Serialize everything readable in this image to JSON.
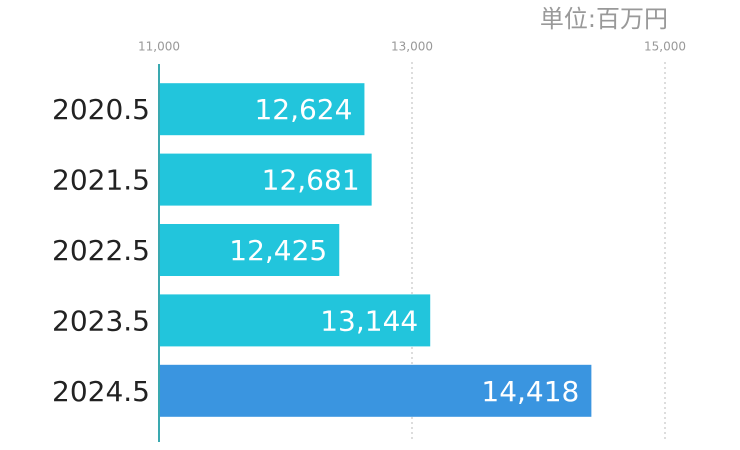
{
  "chart_data": {
    "type": "barh",
    "unit_label": "単位:百万円",
    "categories": [
      "2020.5",
      "2021.5",
      "2022.5",
      "2023.5",
      "2024.5"
    ],
    "values": [
      12624,
      12681,
      12425,
      13144,
      14418
    ],
    "value_labels": [
      "12,624",
      "12,681",
      "12,425",
      "13,144",
      "14,418"
    ],
    "colors": [
      "#22c5dc",
      "#22c5dc",
      "#22c5dc",
      "#22c5dc",
      "#3a95e0"
    ],
    "xlim": [
      11000,
      15000
    ],
    "xticks": [
      {
        "value": 11000,
        "label": "11,000"
      },
      {
        "value": 13000,
        "label": "13,000"
      },
      {
        "value": 15000,
        "label": "15,000"
      }
    ],
    "grid": true
  }
}
